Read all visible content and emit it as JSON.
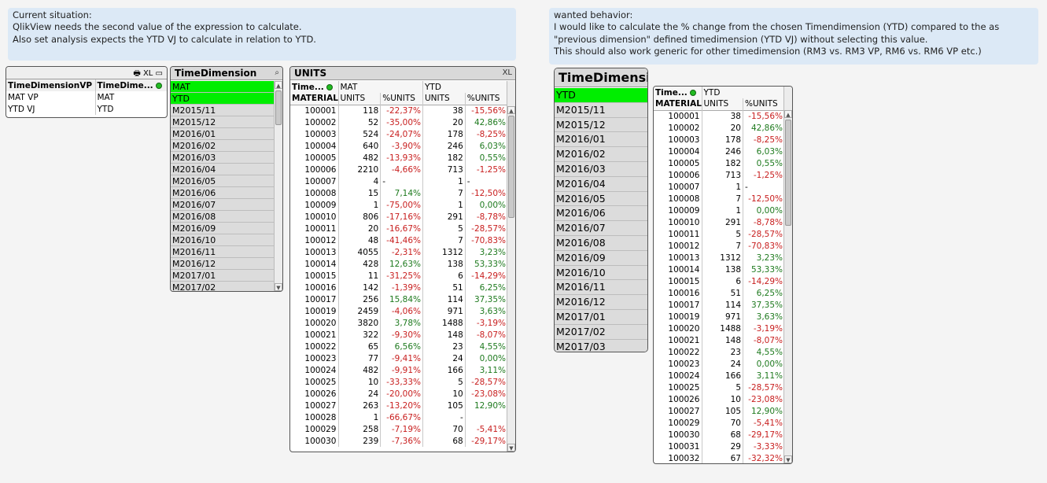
{
  "note_left": {
    "lines": [
      "Current situation:",
      "QlikView needs the second value of the expression to calculate.",
      "Also set analysis expects the YTD VJ to calculate in relation to YTD."
    ]
  },
  "note_right": {
    "lines": [
      "wanted behavior:",
      "I would like to calculate the % change from the chosen Timendimension (YTD)  compared to the as",
      "\"previous dimension\" defined timedimension (YTD VJ) without  selecting this value.",
      "This should also work generic for other timedimension (RM3 vs. RM3 VP, RM6 vs. RM6 VP etc.)"
    ]
  },
  "vp_table": {
    "tools": "🖶 XL ▭",
    "headers": [
      "TimeDimensionVP",
      "TimeDime..."
    ],
    "rows": [
      [
        "MAT VP",
        "MAT"
      ],
      [
        "YTD VJ",
        "YTD"
      ]
    ]
  },
  "listbox1": {
    "title": "TimeDimension",
    "search_icon": "⌕",
    "items": [
      "MAT",
      "YTD",
      "M2015/11",
      "M2015/12",
      "M2016/01",
      "M2016/02",
      "M2016/03",
      "M2016/04",
      "M2016/05",
      "M2016/06",
      "M2016/07",
      "M2016/08",
      "M2016/09",
      "M2016/10",
      "M2016/11",
      "M2016/12",
      "M2017/01",
      "M2017/02"
    ],
    "selected": [
      "MAT",
      "YTD"
    ]
  },
  "units_table": {
    "title": "UNITS",
    "tools": "XL",
    "dim_header": "Time...",
    "group1": "MAT",
    "group2": "YTD",
    "col_headers": [
      "MATERIAL",
      "UNITS",
      "%UNITS",
      "UNITS",
      "%UNITS"
    ],
    "rows": [
      [
        "100001",
        "118",
        "-22,37%",
        "38",
        "-15,56%"
      ],
      [
        "100002",
        "52",
        "-35,00%",
        "20",
        "42,86%"
      ],
      [
        "100003",
        "524",
        "-24,07%",
        "178",
        "-8,25%"
      ],
      [
        "100004",
        "640",
        "-3,90%",
        "246",
        "6,03%"
      ],
      [
        "100005",
        "482",
        "-13,93%",
        "182",
        "0,55%"
      ],
      [
        "100006",
        "2210",
        "-4,66%",
        "713",
        "-1,25%"
      ],
      [
        "100007",
        "4",
        "-",
        "1",
        "-"
      ],
      [
        "100008",
        "15",
        "7,14%",
        "7",
        "-12,50%"
      ],
      [
        "100009",
        "1",
        "-75,00%",
        "1",
        "0,00%"
      ],
      [
        "100010",
        "806",
        "-17,16%",
        "291",
        "-8,78%"
      ],
      [
        "100011",
        "20",
        "-16,67%",
        "5",
        "-28,57%"
      ],
      [
        "100012",
        "48",
        "-41,46%",
        "7",
        "-70,83%"
      ],
      [
        "100013",
        "4055",
        "-2,31%",
        "1312",
        "3,23%"
      ],
      [
        "100014",
        "428",
        "12,63%",
        "138",
        "53,33%"
      ],
      [
        "100015",
        "11",
        "-31,25%",
        "6",
        "-14,29%"
      ],
      [
        "100016",
        "142",
        "-1,39%",
        "51",
        "6,25%"
      ],
      [
        "100017",
        "256",
        "15,84%",
        "114",
        "37,35%"
      ],
      [
        "100019",
        "2459",
        "-4,06%",
        "971",
        "3,63%"
      ],
      [
        "100020",
        "3820",
        "3,78%",
        "1488",
        "-3,19%"
      ],
      [
        "100021",
        "322",
        "-9,30%",
        "148",
        "-8,07%"
      ],
      [
        "100022",
        "65",
        "6,56%",
        "23",
        "4,55%"
      ],
      [
        "100023",
        "77",
        "-9,41%",
        "24",
        "0,00%"
      ],
      [
        "100024",
        "482",
        "-9,91%",
        "166",
        "3,11%"
      ],
      [
        "100025",
        "10",
        "-33,33%",
        "5",
        "-28,57%"
      ],
      [
        "100026",
        "24",
        "-20,00%",
        "10",
        "-23,08%"
      ],
      [
        "100027",
        "263",
        "-13,20%",
        "105",
        "12,90%"
      ],
      [
        "100028",
        "1",
        "-66,67%",
        "-",
        ""
      ],
      [
        "100029",
        "258",
        "-7,19%",
        "70",
        "-5,41%"
      ],
      [
        "100030",
        "239",
        "-7,36%",
        "68",
        "-29,17%"
      ]
    ]
  },
  "listbox2": {
    "title": "TimeDimensi",
    "items": [
      "YTD",
      "M2015/11",
      "M2015/12",
      "M2016/01",
      "M2016/02",
      "M2016/03",
      "M2016/04",
      "M2016/05",
      "M2016/06",
      "M2016/07",
      "M2016/08",
      "M2016/09",
      "M2016/10",
      "M2016/11",
      "M2016/12",
      "M2017/01",
      "M2017/02",
      "M2017/03"
    ],
    "selected": [
      "YTD"
    ]
  },
  "ytd_table": {
    "dim_header": "Time...",
    "group": "YTD",
    "col_headers": [
      "MATERIAL",
      "UNITS",
      "%UNITS"
    ],
    "rows": [
      [
        "100001",
        "38",
        "-15,56%"
      ],
      [
        "100002",
        "20",
        "42,86%"
      ],
      [
        "100003",
        "178",
        "-8,25%"
      ],
      [
        "100004",
        "246",
        "6,03%"
      ],
      [
        "100005",
        "182",
        "0,55%"
      ],
      [
        "100006",
        "713",
        "-1,25%"
      ],
      [
        "100007",
        "1",
        "-"
      ],
      [
        "100008",
        "7",
        "-12,50%"
      ],
      [
        "100009",
        "1",
        "0,00%"
      ],
      [
        "100010",
        "291",
        "-8,78%"
      ],
      [
        "100011",
        "5",
        "-28,57%"
      ],
      [
        "100012",
        "7",
        "-70,83%"
      ],
      [
        "100013",
        "1312",
        "3,23%"
      ],
      [
        "100014",
        "138",
        "53,33%"
      ],
      [
        "100015",
        "6",
        "-14,29%"
      ],
      [
        "100016",
        "51",
        "6,25%"
      ],
      [
        "100017",
        "114",
        "37,35%"
      ],
      [
        "100019",
        "971",
        "3,63%"
      ],
      [
        "100020",
        "1488",
        "-3,19%"
      ],
      [
        "100021",
        "148",
        "-8,07%"
      ],
      [
        "100022",
        "23",
        "4,55%"
      ],
      [
        "100023",
        "24",
        "0,00%"
      ],
      [
        "100024",
        "166",
        "3,11%"
      ],
      [
        "100025",
        "5",
        "-28,57%"
      ],
      [
        "100026",
        "10",
        "-23,08%"
      ],
      [
        "100027",
        "105",
        "12,90%"
      ],
      [
        "100029",
        "70",
        "-5,41%"
      ],
      [
        "100030",
        "68",
        "-29,17%"
      ],
      [
        "100031",
        "29",
        "-3,33%"
      ],
      [
        "100032",
        "67",
        "-32,32%"
      ]
    ]
  },
  "colors": {
    "selected": "#00ee00",
    "negative": "#c81e1e",
    "positive": "#1e7a1e",
    "note_bg": "#dce9f6"
  }
}
